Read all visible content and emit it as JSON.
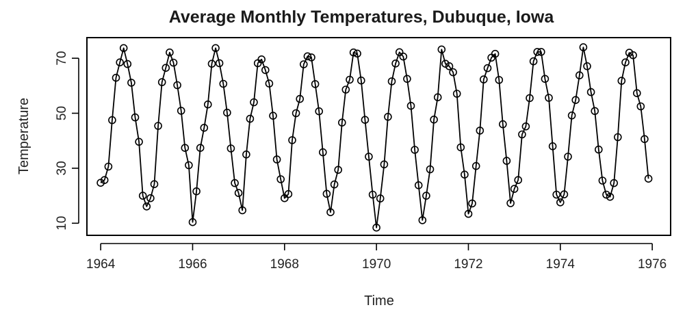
{
  "chart_data": {
    "type": "line",
    "title": "Average Monthly Temperatures, Dubuque, Iowa",
    "xlabel": "Time",
    "ylabel": "Temperature",
    "xlim": [
      1963.7,
      1976.4
    ],
    "ylim": [
      5.6,
      77.5
    ],
    "x_ticks": [
      1964,
      1966,
      1968,
      1970,
      1972,
      1974,
      1976
    ],
    "y_ticks": [
      10,
      30,
      50,
      70
    ],
    "grid": false,
    "markers": "open-circle",
    "x": [
      1964.0,
      1964.083,
      1964.167,
      1964.25,
      1964.333,
      1964.417,
      1964.5,
      1964.583,
      1964.667,
      1964.75,
      1964.833,
      1964.917,
      1965.0,
      1965.083,
      1965.167,
      1965.25,
      1965.333,
      1965.417,
      1965.5,
      1965.583,
      1965.667,
      1965.75,
      1965.833,
      1965.917,
      1966.0,
      1966.083,
      1966.167,
      1966.25,
      1966.333,
      1966.417,
      1966.5,
      1966.583,
      1966.667,
      1966.75,
      1966.833,
      1966.917,
      1967.0,
      1967.083,
      1967.167,
      1967.25,
      1967.333,
      1967.417,
      1967.5,
      1967.583,
      1967.667,
      1967.75,
      1967.833,
      1967.917,
      1968.0,
      1968.083,
      1968.167,
      1968.25,
      1968.333,
      1968.417,
      1968.5,
      1968.583,
      1968.667,
      1968.75,
      1968.833,
      1968.917,
      1969.0,
      1969.083,
      1969.167,
      1969.25,
      1969.333,
      1969.417,
      1969.5,
      1969.583,
      1969.667,
      1969.75,
      1969.833,
      1969.917,
      1970.0,
      1970.083,
      1970.167,
      1970.25,
      1970.333,
      1970.417,
      1970.5,
      1970.583,
      1970.667,
      1970.75,
      1970.833,
      1970.917,
      1971.0,
      1971.083,
      1971.167,
      1971.25,
      1971.333,
      1971.417,
      1971.5,
      1971.583,
      1971.667,
      1971.75,
      1971.833,
      1971.917,
      1972.0,
      1972.083,
      1972.167,
      1972.25,
      1972.333,
      1972.417,
      1972.5,
      1972.583,
      1972.667,
      1972.75,
      1972.833,
      1972.917,
      1973.0,
      1973.083,
      1973.167,
      1973.25,
      1973.333,
      1973.417,
      1973.5,
      1973.583,
      1973.667,
      1973.75,
      1973.833,
      1973.917,
      1974.0,
      1974.083,
      1974.167,
      1974.25,
      1974.333,
      1974.417,
      1974.5,
      1974.583,
      1974.667,
      1974.75,
      1974.833,
      1974.917,
      1975.0,
      1975.083,
      1975.167,
      1975.25,
      1975.333,
      1975.417,
      1975.5,
      1975.583,
      1975.667,
      1975.75,
      1975.833,
      1975.917
    ],
    "series": [
      {
        "values": [
          24.7,
          25.7,
          30.6,
          47.5,
          62.9,
          68.5,
          73.7,
          67.9,
          61.1,
          48.5,
          39.6,
          20.0,
          16.1,
          19.1,
          24.2,
          45.4,
          61.3,
          66.5,
          72.1,
          68.4,
          60.2,
          50.9,
          37.4,
          31.1,
          10.4,
          21.6,
          37.4,
          44.7,
          53.2,
          68.0,
          73.7,
          68.2,
          60.7,
          50.2,
          37.2,
          24.6,
          21.0,
          14.7,
          35.0,
          48.0,
          54.0,
          68.2,
          69.6,
          65.7,
          60.8,
          49.1,
          33.2,
          26.0,
          19.1,
          20.6,
          40.2,
          50.0,
          55.2,
          67.8,
          70.7,
          70.3,
          60.6,
          50.7,
          35.8,
          20.7,
          14.0,
          24.1,
          29.4,
          46.6,
          58.6,
          62.2,
          72.1,
          71.7,
          61.9,
          47.6,
          34.2,
          20.4,
          8.4,
          19.0,
          31.4,
          48.7,
          61.6,
          68.1,
          72.2,
          70.6,
          62.5,
          52.7,
          36.7,
          23.8,
          11.1,
          20.0,
          29.6,
          47.7,
          55.8,
          73.2,
          68.0,
          67.1,
          64.9,
          57.1,
          37.6,
          27.7,
          13.4,
          17.2,
          30.8,
          43.7,
          62.3,
          66.4,
          70.2,
          71.6,
          62.1,
          46.0,
          32.7,
          17.3,
          22.5,
          25.7,
          42.3,
          45.2,
          55.5,
          68.9,
          72.3,
          72.3,
          62.5,
          55.6,
          38.0,
          20.4,
          17.6,
          20.5,
          34.2,
          49.2,
          54.8,
          63.8,
          74.0,
          67.1,
          57.7,
          50.8,
          36.8,
          25.5,
          20.4,
          19.6,
          24.6,
          41.3,
          61.8,
          68.5,
          72.0,
          71.1,
          57.3,
          52.5,
          40.6,
          26.2
        ]
      }
    ]
  }
}
